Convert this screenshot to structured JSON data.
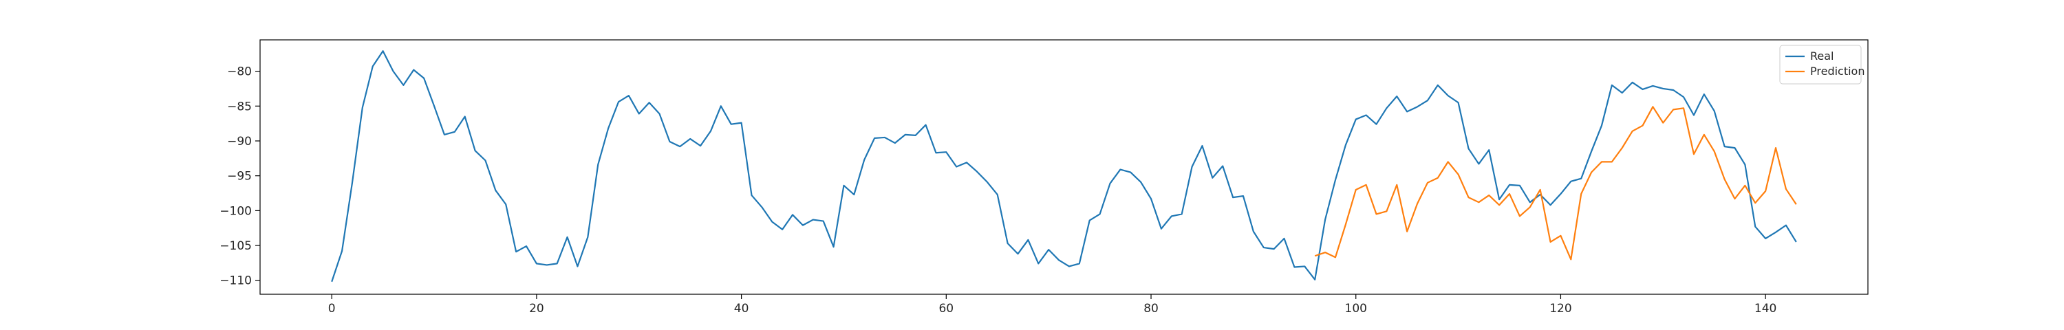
{
  "chart_data": {
    "type": "line",
    "title": "",
    "xlabel": "",
    "ylabel": "",
    "xlim": [
      -7,
      150
    ],
    "ylim": [
      -112,
      -75.5
    ],
    "xticks": [
      0,
      20,
      40,
      60,
      80,
      100,
      120,
      140
    ],
    "yticks": [
      -80,
      -85,
      -90,
      -95,
      -100,
      -105,
      -110
    ],
    "grid": false,
    "legend_position": "top-right",
    "series": [
      {
        "name": "Real",
        "color": "#1f77b4",
        "x_start": 0,
        "values": [
          -110.2,
          -105.8,
          -96.0,
          -85.2,
          -79.3,
          -77.1,
          -80.0,
          -82.0,
          -79.8,
          -81.0,
          -85.0,
          -89.1,
          -88.7,
          -86.5,
          -91.4,
          -92.8,
          -97.1,
          -99.1,
          -105.9,
          -105.1,
          -107.6,
          -107.8,
          -107.6,
          -103.8,
          -108.0,
          -103.8,
          -93.4,
          -88.2,
          -84.4,
          -83.5,
          -86.1,
          -84.5,
          -86.1,
          -90.1,
          -90.8,
          -89.7,
          -90.7,
          -88.6,
          -85.0,
          -87.6,
          -87.4,
          -97.8,
          -99.5,
          -101.6,
          -102.7,
          -100.6,
          -102.1,
          -101.3,
          -101.5,
          -105.2,
          -96.4,
          -97.7,
          -92.7,
          -89.6,
          -89.5,
          -90.3,
          -89.1,
          -89.2,
          -87.7,
          -91.7,
          -91.6,
          -93.7,
          -93.1,
          -94.4,
          -95.9,
          -97.7,
          -104.7,
          -106.2,
          -104.2,
          -107.6,
          -105.6,
          -107.1,
          -108.0,
          -107.6,
          -101.4,
          -100.5,
          -96.1,
          -94.1,
          -94.5,
          -95.9,
          -98.3,
          -102.6,
          -100.8,
          -100.5,
          -93.7,
          -90.7,
          -95.3,
          -93.6,
          -98.1,
          -97.9,
          -103.0,
          -105.3,
          -105.5,
          -104.0,
          -108.1,
          -108.0,
          -109.9,
          -101.3,
          -95.6,
          -90.6,
          -86.9,
          -86.3,
          -87.6,
          -85.3,
          -83.6,
          -85.8,
          -85.1,
          -84.2,
          -82.0,
          -83.5,
          -84.5,
          -91.1,
          -93.3,
          -91.3,
          -98.4,
          -96.3,
          -96.4,
          -98.8,
          -97.7,
          -99.2,
          -97.6,
          -95.8,
          -95.4,
          -91.5,
          -87.8,
          -82.0,
          -83.1,
          -81.6,
          -82.6,
          -82.1,
          -82.5,
          -82.7,
          -83.7,
          -86.3,
          -83.3,
          -85.7,
          -90.8,
          -91.0,
          -93.4,
          -102.3,
          -104.0,
          -103.1,
          -102.1,
          -104.5
        ]
      },
      {
        "name": "Prediction",
        "color": "#ff7f0e",
        "x_start": 96,
        "values": [
          -106.5,
          -106.0,
          -106.7,
          -102.0,
          -97.0,
          -96.3,
          -100.5,
          -100.1,
          -96.3,
          -103.0,
          -99.0,
          -96.0,
          -95.3,
          -93.0,
          -94.8,
          -98.1,
          -98.8,
          -97.8,
          -99.2,
          -97.6,
          -100.8,
          -99.5,
          -97.0,
          -104.5,
          -103.6,
          -107.0,
          -97.6,
          -94.5,
          -93.0,
          -93.0,
          -91.0,
          -88.6,
          -87.8,
          -85.1,
          -87.4,
          -85.5,
          -85.3,
          -91.9,
          -89.1,
          -91.5,
          -95.5,
          -98.3,
          -96.4,
          -98.9,
          -97.2,
          -91.0,
          -96.9,
          -99.1
        ]
      }
    ]
  }
}
